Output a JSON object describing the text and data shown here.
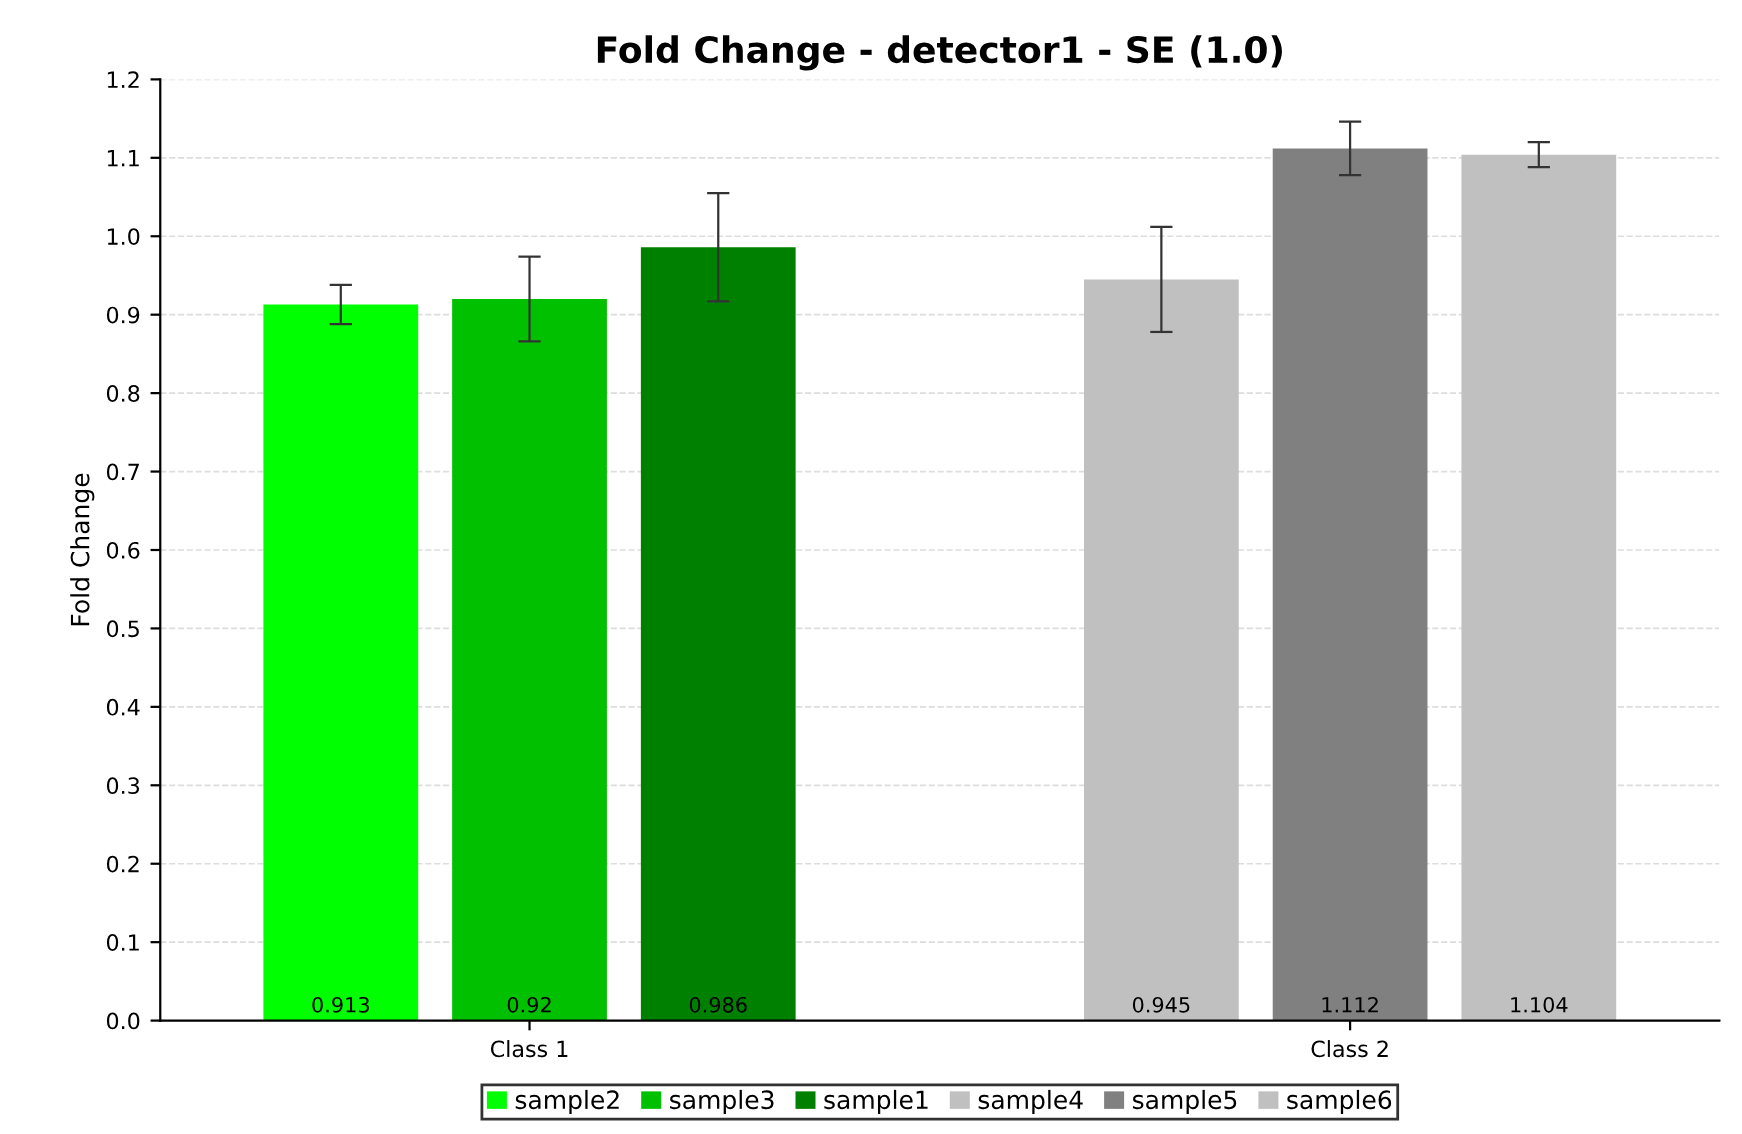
{
  "chart_data": {
    "type": "bar",
    "title": "Fold Change - detector1 - SE (1.0)",
    "ylabel": "Fold Change",
    "categories": [
      "Class 1",
      "Class 2"
    ],
    "series": [
      {
        "name": "sample2",
        "color": "#00ff00",
        "values": [
          0.913,
          null
        ],
        "errors": [
          0.025,
          null
        ]
      },
      {
        "name": "sample3",
        "color": "#00c000",
        "values": [
          0.92,
          null
        ],
        "errors": [
          0.054,
          null
        ]
      },
      {
        "name": "sample1",
        "color": "#008000",
        "values": [
          0.986,
          null
        ],
        "errors": [
          0.069,
          null
        ]
      },
      {
        "name": "sample4",
        "color": "#c0c0c0",
        "values": [
          null,
          0.945
        ],
        "errors": [
          null,
          0.067
        ]
      },
      {
        "name": "sample5",
        "color": "#808080",
        "values": [
          null,
          1.112
        ],
        "errors": [
          null,
          0.034
        ]
      },
      {
        "name": "sample6",
        "color": "#c0c0c0",
        "values": [
          null,
          1.104
        ],
        "errors": [
          null,
          0.016
        ]
      }
    ],
    "ylim": [
      0,
      1.2
    ],
    "yticks": [
      {
        "value": 0,
        "label": "0.0"
      },
      {
        "value": 0.1,
        "label": "0.1"
      },
      {
        "value": 0.2,
        "label": "0.2"
      },
      {
        "value": 0.3,
        "label": "0.3"
      },
      {
        "value": 0.4,
        "label": "0.4"
      },
      {
        "value": 0.5,
        "label": "0.5"
      },
      {
        "value": 0.6,
        "label": "0.6"
      },
      {
        "value": 0.7,
        "label": "0.7"
      },
      {
        "value": 0.8,
        "label": "0.8"
      },
      {
        "value": 0.9,
        "label": "0.9"
      },
      {
        "value": 1.0,
        "label": "1.0"
      },
      {
        "value": 1.1,
        "label": "1.1"
      },
      {
        "value": 1.2,
        "label": "1.2"
      }
    ],
    "grid": "y",
    "legend": "bottom",
    "data_labels": true
  }
}
